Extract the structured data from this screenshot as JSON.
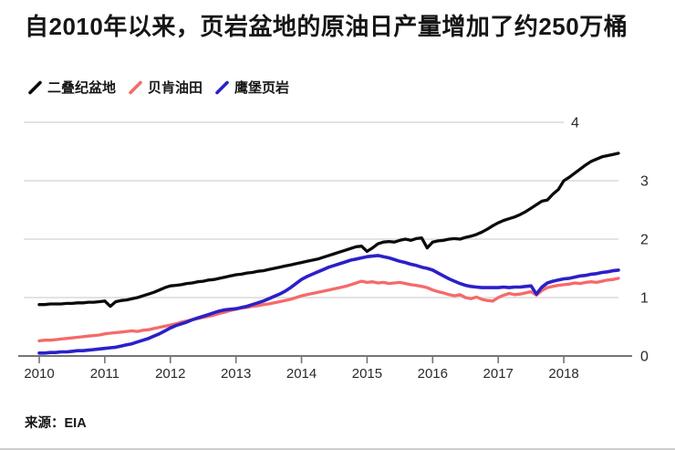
{
  "title": "自2010年以来，页岩盆地的原油日产量增加了约250万桶",
  "source": {
    "label": "来源：EIA"
  },
  "legend": [
    {
      "label": "二叠纪盆地",
      "color": "#0b0b0b"
    },
    {
      "label": "贝肯油田",
      "color": "#f56a6a"
    },
    {
      "label": "鹰堡页岩",
      "color": "#2b20c8"
    }
  ],
  "colors": {
    "permian": "#0b0b0b",
    "bakken": "#f56a6a",
    "eagle_ford": "#2b20c8",
    "grid": "#e3e3e3",
    "axis": "#757575",
    "tick_text": "#2a2a2a"
  },
  "chart_data": {
    "type": "line",
    "title": "自2010年以来，页岩盆地的原油日产量增加了约250万桶",
    "xlabel": "",
    "ylabel": "",
    "x_unit": "month",
    "x_start": "2010-01",
    "x_end": "2018-11",
    "x_tick_labels": [
      "2010",
      "2011",
      "2012",
      "2013",
      "2014",
      "2015",
      "2016",
      "2017",
      "2018"
    ],
    "y_tick_labels": [
      "0",
      "1",
      "2",
      "3",
      "4"
    ],
    "ylim": [
      0,
      4
    ],
    "grid": true,
    "legend_position": "top-left",
    "series": [
      {
        "name": "二叠纪盆地",
        "color": "#0b0b0b",
        "values": [
          0.88,
          0.88,
          0.89,
          0.89,
          0.89,
          0.9,
          0.9,
          0.91,
          0.91,
          0.92,
          0.92,
          0.93,
          0.94,
          0.85,
          0.93,
          0.95,
          0.96,
          0.98,
          1.0,
          1.03,
          1.06,
          1.09,
          1.13,
          1.17,
          1.2,
          1.21,
          1.22,
          1.24,
          1.25,
          1.27,
          1.28,
          1.3,
          1.31,
          1.33,
          1.35,
          1.37,
          1.39,
          1.4,
          1.42,
          1.43,
          1.45,
          1.46,
          1.48,
          1.5,
          1.52,
          1.54,
          1.56,
          1.58,
          1.6,
          1.62,
          1.64,
          1.66,
          1.69,
          1.72,
          1.75,
          1.78,
          1.81,
          1.84,
          1.87,
          1.88,
          1.79,
          1.85,
          1.92,
          1.95,
          1.96,
          1.95,
          1.98,
          2.0,
          1.98,
          2.01,
          2.02,
          1.85,
          1.95,
          1.97,
          1.98,
          2.0,
          2.01,
          2.0,
          2.03,
          2.05,
          2.08,
          2.12,
          2.17,
          2.23,
          2.28,
          2.32,
          2.35,
          2.38,
          2.42,
          2.47,
          2.53,
          2.59,
          2.65,
          2.67,
          2.77,
          2.85,
          3.0,
          3.06,
          3.13,
          3.2,
          3.27,
          3.33,
          3.37,
          3.41,
          3.43,
          3.45,
          3.47
        ]
      },
      {
        "name": "贝肯油田",
        "color": "#f56a6a",
        "values": [
          0.26,
          0.27,
          0.27,
          0.28,
          0.29,
          0.3,
          0.31,
          0.32,
          0.33,
          0.34,
          0.35,
          0.36,
          0.38,
          0.39,
          0.4,
          0.41,
          0.42,
          0.43,
          0.42,
          0.44,
          0.45,
          0.47,
          0.49,
          0.51,
          0.53,
          0.55,
          0.58,
          0.6,
          0.62,
          0.64,
          0.66,
          0.68,
          0.7,
          0.73,
          0.75,
          0.78,
          0.8,
          0.82,
          0.83,
          0.85,
          0.86,
          0.88,
          0.89,
          0.91,
          0.93,
          0.95,
          0.97,
          1.0,
          1.03,
          1.05,
          1.07,
          1.09,
          1.11,
          1.13,
          1.15,
          1.17,
          1.19,
          1.22,
          1.25,
          1.28,
          1.26,
          1.27,
          1.25,
          1.26,
          1.24,
          1.25,
          1.26,
          1.24,
          1.22,
          1.21,
          1.19,
          1.17,
          1.13,
          1.1,
          1.08,
          1.05,
          1.03,
          1.05,
          1.0,
          0.98,
          1.01,
          0.97,
          0.95,
          0.94,
          1.0,
          1.04,
          1.07,
          1.05,
          1.06,
          1.08,
          1.1,
          1.04,
          1.12,
          1.17,
          1.19,
          1.21,
          1.22,
          1.23,
          1.25,
          1.24,
          1.26,
          1.27,
          1.26,
          1.28,
          1.3,
          1.31,
          1.33
        ]
      },
      {
        "name": "鹰堡页岩",
        "color": "#2b20c8",
        "values": [
          0.05,
          0.05,
          0.06,
          0.06,
          0.07,
          0.07,
          0.08,
          0.09,
          0.09,
          0.1,
          0.11,
          0.12,
          0.13,
          0.14,
          0.15,
          0.17,
          0.19,
          0.21,
          0.24,
          0.27,
          0.3,
          0.34,
          0.38,
          0.43,
          0.48,
          0.52,
          0.55,
          0.58,
          0.62,
          0.65,
          0.68,
          0.71,
          0.74,
          0.77,
          0.79,
          0.8,
          0.81,
          0.83,
          0.85,
          0.88,
          0.91,
          0.94,
          0.98,
          1.02,
          1.06,
          1.11,
          1.17,
          1.24,
          1.31,
          1.36,
          1.4,
          1.44,
          1.48,
          1.52,
          1.55,
          1.58,
          1.61,
          1.64,
          1.66,
          1.68,
          1.7,
          1.71,
          1.72,
          1.7,
          1.68,
          1.65,
          1.62,
          1.6,
          1.57,
          1.55,
          1.52,
          1.5,
          1.47,
          1.42,
          1.37,
          1.32,
          1.28,
          1.24,
          1.21,
          1.19,
          1.18,
          1.17,
          1.17,
          1.17,
          1.17,
          1.18,
          1.17,
          1.18,
          1.18,
          1.19,
          1.2,
          1.06,
          1.18,
          1.25,
          1.28,
          1.3,
          1.32,
          1.33,
          1.35,
          1.37,
          1.38,
          1.4,
          1.41,
          1.43,
          1.44,
          1.46,
          1.47
        ]
      }
    ]
  }
}
